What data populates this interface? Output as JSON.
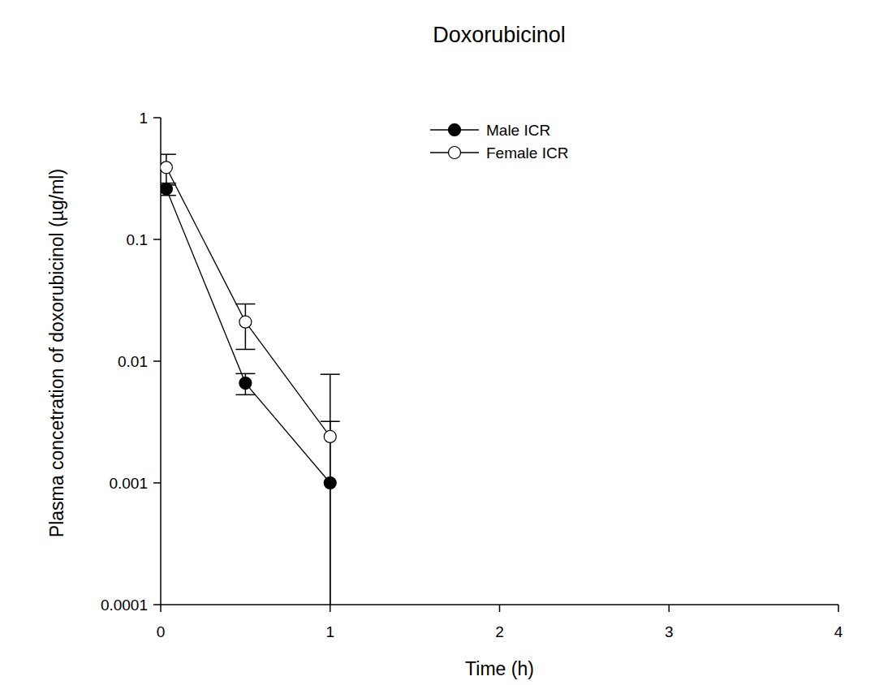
{
  "chart_data": {
    "type": "line",
    "title": "Doxorubicinol",
    "x_label": "Time (h)",
    "y_label": "Plasma concetration of doxorubicinol (µg/ml)",
    "log": "y",
    "grid": false,
    "legend": "top",
    "xlim": [
      0,
      4
    ],
    "xticks": [
      0,
      1,
      2,
      3,
      4
    ],
    "ylim": [
      0.0001,
      1
    ],
    "yticks": [
      0.0001,
      0.001,
      0.01,
      0.1,
      1
    ],
    "series": [
      {
        "name": "Male ICR",
        "color": "#000000",
        "marker": "circle",
        "line_style": "solid",
        "x": [
          0.033,
          0.5,
          1
        ],
        "values": [
          0.26,
          0.0066,
          0.001
        ],
        "errors": [
          0.03,
          0.0013,
          0.0022
        ]
      },
      {
        "name": "Female ICR",
        "color": "#ffffff",
        "marker": "circle",
        "line_style": "solid",
        "x": [
          0.033,
          0.5,
          1
        ],
        "values": [
          0.39,
          0.021,
          0.0024
        ],
        "errors": [
          0.11,
          0.0085,
          0.0054
        ]
      }
    ]
  }
}
